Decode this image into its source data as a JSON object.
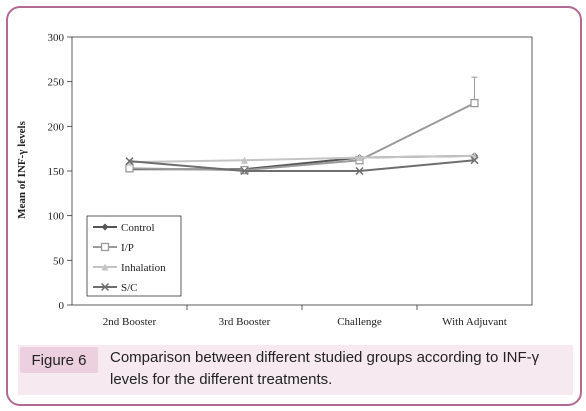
{
  "figure": {
    "label": "Figure 6",
    "caption": "Comparison between different studied groups according to INF-γ levels for the different treatments."
  },
  "chart_data": {
    "type": "line",
    "title": "",
    "xlabel": "",
    "ylabel": "Mean of INF-γ levels",
    "categories": [
      "2nd Booster",
      "3rd Booster",
      "Challenge",
      "With Adjuvant"
    ],
    "ylim": [
      0,
      300
    ],
    "yticks": [
      0,
      50,
      100,
      150,
      200,
      250,
      300
    ],
    "grid": false,
    "legend_position": "bottom-left",
    "series": [
      {
        "name": "Control",
        "values": [
          152,
          152,
          165,
          167
        ],
        "color": "#555555",
        "marker": "diamond"
      },
      {
        "name": "I/P",
        "values": [
          153,
          151,
          162,
          226
        ],
        "color": "#9a9a9a",
        "marker": "square",
        "error_high": [
          null,
          null,
          null,
          29
        ]
      },
      {
        "name": "Inhalation",
        "values": [
          160,
          162,
          165,
          167
        ],
        "color": "#c4c4c4",
        "marker": "triangle"
      },
      {
        "name": "S/C",
        "values": [
          161,
          150,
          150,
          162
        ],
        "color": "#6e6e6e",
        "marker": "x"
      }
    ]
  }
}
